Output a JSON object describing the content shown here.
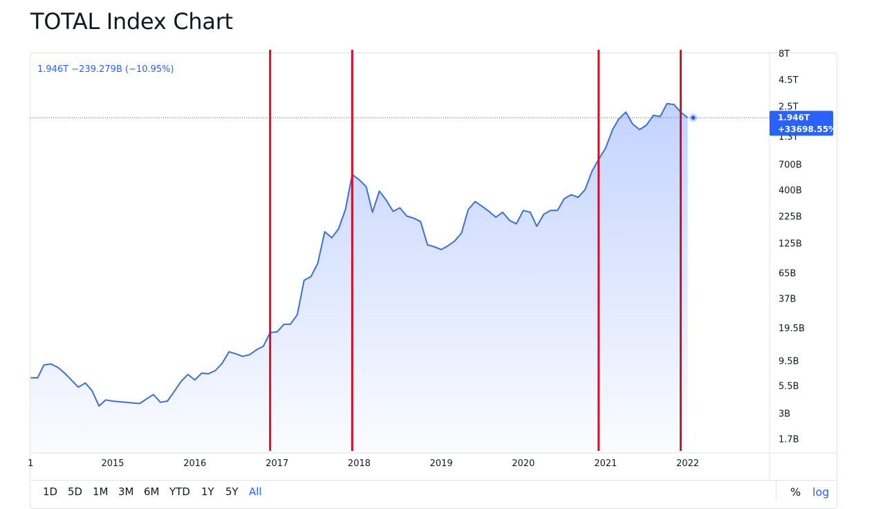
{
  "title": "TOTAL Index Chart",
  "legend": {
    "text": "1.946T −239.279B (−10.95%)"
  },
  "last_badge": {
    "value": "1.946T",
    "change": "+33698.55%",
    "color": "#2962ff"
  },
  "colors": {
    "line": "#3a6fd8",
    "marker": "#d0102a",
    "grid_axis": "#e0e3eb"
  },
  "toolbar": {
    "timeframes": [
      "1D",
      "5D",
      "1M",
      "3M",
      "6M",
      "YTD",
      "1Y",
      "5Y",
      "All"
    ],
    "active": "All",
    "percent_label": "%",
    "log_label": "log"
  },
  "chart_data": {
    "type": "area",
    "title": "",
    "xlabel": "",
    "ylabel": "",
    "y_scale": "log",
    "y_unit": "USD",
    "y_ticks": [
      {
        "label": "8T",
        "value": 8000000000000
      },
      {
        "label": "4.5T",
        "value": 4500000000000
      },
      {
        "label": "2.5T",
        "value": 2500000000000
      },
      {
        "label": "1.3T",
        "value": 1300000000000
      },
      {
        "label": "700B",
        "value": 700000000000
      },
      {
        "label": "400B",
        "value": 400000000000
      },
      {
        "label": "225B",
        "value": 225000000000
      },
      {
        "label": "125B",
        "value": 125000000000
      },
      {
        "label": "65B",
        "value": 65000000000
      },
      {
        "label": "37B",
        "value": 37000000000
      },
      {
        "label": "19.5B",
        "value": 19500000000
      },
      {
        "label": "9.5B",
        "value": 9500000000
      },
      {
        "label": "5.5B",
        "value": 5500000000
      },
      {
        "label": "3B",
        "value": 3000000000
      },
      {
        "label": "1.7B",
        "value": 1700000000
      }
    ],
    "x_ticks": [
      {
        "label": "1",
        "date": "2014-01-01"
      },
      {
        "label": "2015",
        "date": "2015-01-01"
      },
      {
        "label": "2016",
        "date": "2016-01-01"
      },
      {
        "label": "2017",
        "date": "2017-01-01"
      },
      {
        "label": "2018",
        "date": "2018-01-01"
      },
      {
        "label": "2019",
        "date": "2019-01-01"
      },
      {
        "label": "2020",
        "date": "2020-01-01"
      },
      {
        "label": "2021",
        "date": "2021-01-01"
      },
      {
        "label": "2022",
        "date": "2022-01-01"
      }
    ],
    "x_range": [
      "2013-12-31",
      "2022-12-31"
    ],
    "y_range": [
      1500000000,
      8000000000000
    ],
    "markers": [
      "2016-12-01",
      "2017-12-01",
      "2020-12-01",
      "2021-12-01"
    ],
    "last_value": 1946000000000,
    "series": [
      {
        "values": [
          [
            "2014-01-01",
            6500000000.0
          ],
          [
            "2014-02-01",
            6500000000.0
          ],
          [
            "2014-03-01",
            8600000000.0
          ],
          [
            "2014-04-01",
            8800000000.0
          ],
          [
            "2014-05-01",
            8200000000.0
          ],
          [
            "2014-06-01",
            7200000000.0
          ],
          [
            "2014-07-01",
            6200000000.0
          ],
          [
            "2014-08-01",
            5300000000.0
          ],
          [
            "2014-09-01",
            5800000000.0
          ],
          [
            "2014-10-01",
            4900000000.0
          ],
          [
            "2014-11-01",
            3500000000.0
          ],
          [
            "2014-12-01",
            4000000000.0
          ],
          [
            "2015-01-01",
            3900000000.0
          ],
          [
            "2015-03-01",
            3800000000.0
          ],
          [
            "2015-05-01",
            3700000000.0
          ],
          [
            "2015-06-01",
            4100000000.0
          ],
          [
            "2015-07-01",
            4500000000.0
          ],
          [
            "2015-08-01",
            3800000000.0
          ],
          [
            "2015-09-01",
            3900000000.0
          ],
          [
            "2015-10-01",
            4800000000.0
          ],
          [
            "2015-11-01",
            6000000000.0
          ],
          [
            "2015-12-01",
            7000000000.0
          ],
          [
            "2016-01-01",
            6200000000.0
          ],
          [
            "2016-02-01",
            7200000000.0
          ],
          [
            "2016-03-01",
            7100000000.0
          ],
          [
            "2016-04-01",
            7600000000.0
          ],
          [
            "2016-05-01",
            8900000000.0
          ],
          [
            "2016-06-01",
            11500000000.0
          ],
          [
            "2016-07-01",
            11000000000.0
          ],
          [
            "2016-08-01",
            10400000000.0
          ],
          [
            "2016-09-01",
            10800000000.0
          ],
          [
            "2016-10-01",
            12000000000.0
          ],
          [
            "2016-11-01",
            13000000000.0
          ],
          [
            "2016-12-01",
            17500000000.0
          ],
          [
            "2017-01-01",
            17800000000.0
          ],
          [
            "2017-02-01",
            21000000000.0
          ],
          [
            "2017-03-01",
            21000000000.0
          ],
          [
            "2017-04-01",
            26000000000.0
          ],
          [
            "2017-05-01",
            55000000000.0
          ],
          [
            "2017-06-01",
            60000000000.0
          ],
          [
            "2017-07-01",
            80000000000.0
          ],
          [
            "2017-08-01",
            160000000000.0
          ],
          [
            "2017-09-01",
            140000000000.0
          ],
          [
            "2017-10-01",
            170000000000.0
          ],
          [
            "2017-11-01",
            260000000000.0
          ],
          [
            "2017-12-01",
            560000000000.0
          ],
          [
            "2018-01-01",
            500000000000.0
          ],
          [
            "2018-02-01",
            430000000000.0
          ],
          [
            "2018-03-01",
            245000000000.0
          ],
          [
            "2018-04-01",
            390000000000.0
          ],
          [
            "2018-05-01",
            320000000000.0
          ],
          [
            "2018-06-01",
            250000000000.0
          ],
          [
            "2018-07-01",
            270000000000.0
          ],
          [
            "2018-08-01",
            225000000000.0
          ],
          [
            "2018-09-01",
            215000000000.0
          ],
          [
            "2018-10-01",
            200000000000.0
          ],
          [
            "2018-11-01",
            120000000000.0
          ],
          [
            "2018-12-01",
            115000000000.0
          ],
          [
            "2019-01-01",
            108000000000.0
          ],
          [
            "2019-02-01",
            118000000000.0
          ],
          [
            "2019-03-01",
            130000000000.0
          ],
          [
            "2019-04-01",
            155000000000.0
          ],
          [
            "2019-05-01",
            260000000000.0
          ],
          [
            "2019-06-01",
            310000000000.0
          ],
          [
            "2019-07-01",
            280000000000.0
          ],
          [
            "2019-08-01",
            250000000000.0
          ],
          [
            "2019-09-01",
            220000000000.0
          ],
          [
            "2019-10-01",
            245000000000.0
          ],
          [
            "2019-11-01",
            205000000000.0
          ],
          [
            "2019-12-01",
            190000000000.0
          ],
          [
            "2020-01-01",
            255000000000.0
          ],
          [
            "2020-02-01",
            245000000000.0
          ],
          [
            "2020-03-01",
            180000000000.0
          ],
          [
            "2020-04-01",
            235000000000.0
          ],
          [
            "2020-05-01",
            255000000000.0
          ],
          [
            "2020-06-01",
            255000000000.0
          ],
          [
            "2020-07-01",
            330000000000.0
          ],
          [
            "2020-08-01",
            360000000000.0
          ],
          [
            "2020-09-01",
            340000000000.0
          ],
          [
            "2020-10-01",
            400000000000.0
          ],
          [
            "2020-11-01",
            600000000000.0
          ],
          [
            "2020-12-01",
            780000000000.0
          ],
          [
            "2021-01-01",
            1000000000000.0
          ],
          [
            "2021-02-01",
            1500000000000.0
          ],
          [
            "2021-03-01",
            1900000000000.0
          ],
          [
            "2021-04-01",
            2200000000000.0
          ],
          [
            "2021-05-01",
            1700000000000.0
          ],
          [
            "2021-06-01",
            1500000000000.0
          ],
          [
            "2021-07-01",
            1650000000000.0
          ],
          [
            "2021-08-01",
            2050000000000.0
          ],
          [
            "2021-09-01",
            2000000000000.0
          ],
          [
            "2021-10-01",
            2650000000000.0
          ],
          [
            "2021-11-01",
            2600000000000.0
          ],
          [
            "2021-12-01",
            2200000000000.0
          ],
          [
            "2022-01-01",
            1946000000000.0
          ]
        ]
      }
    ],
    "grid": false,
    "legend": "top-left"
  }
}
